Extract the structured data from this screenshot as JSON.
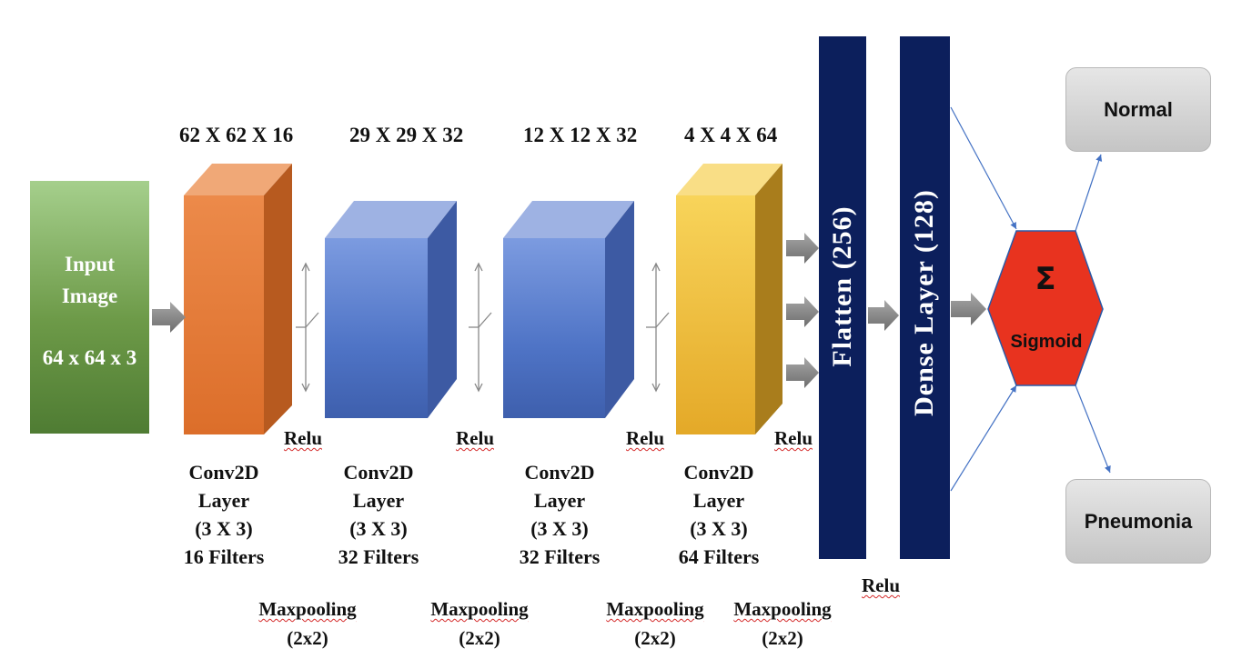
{
  "input": {
    "line1": "Input",
    "line2": "Image",
    "size": "64 x 64 x 3"
  },
  "layers": [
    {
      "dims": "62 X 62 X 16",
      "name": "Conv2D",
      "sub": "Layer",
      "kernel": "(3 X 3)",
      "filters": "16 Filters",
      "color": "#e67e3c"
    },
    {
      "dims": "29 X 29 X 32",
      "name": "Conv2D",
      "sub": "Layer",
      "kernel": "(3 X 3)",
      "filters": "32 Filters",
      "color": "#5b7fd0"
    },
    {
      "dims": "12 X 12 X 32",
      "name": "Conv2D",
      "sub": "Layer",
      "kernel": "(3 X 3)",
      "filters": "32 Filters",
      "color": "#5b7fd0"
    },
    {
      "dims": "4 X 4 X 64",
      "name": "Conv2D",
      "sub": "Layer",
      "kernel": "(3 X 3)",
      "filters": "64 Filters",
      "color": "#f2c233"
    }
  ],
  "activations": [
    "Relu",
    "Relu",
    "Relu",
    "Relu",
    "Relu"
  ],
  "pooling": [
    {
      "name": "Maxpooling",
      "size": "(2x2)"
    },
    {
      "name": "Maxpooling",
      "size": "(2x2)"
    },
    {
      "name": "Maxpooling",
      "size": "(2x2)"
    },
    {
      "name": "Maxpooling",
      "size": "(2x2)"
    }
  ],
  "flatten": {
    "label": "Flatten (256)",
    "color": "#0c1f5c"
  },
  "dense": {
    "label": "Dense Layer (128)",
    "color": "#0c1f5c"
  },
  "sigmoid": {
    "symbol": "Σ",
    "label": "Sigmoid",
    "color": "#e8331f"
  },
  "outputs": {
    "normal": "Normal",
    "pneumonia": "Pneumonia"
  }
}
